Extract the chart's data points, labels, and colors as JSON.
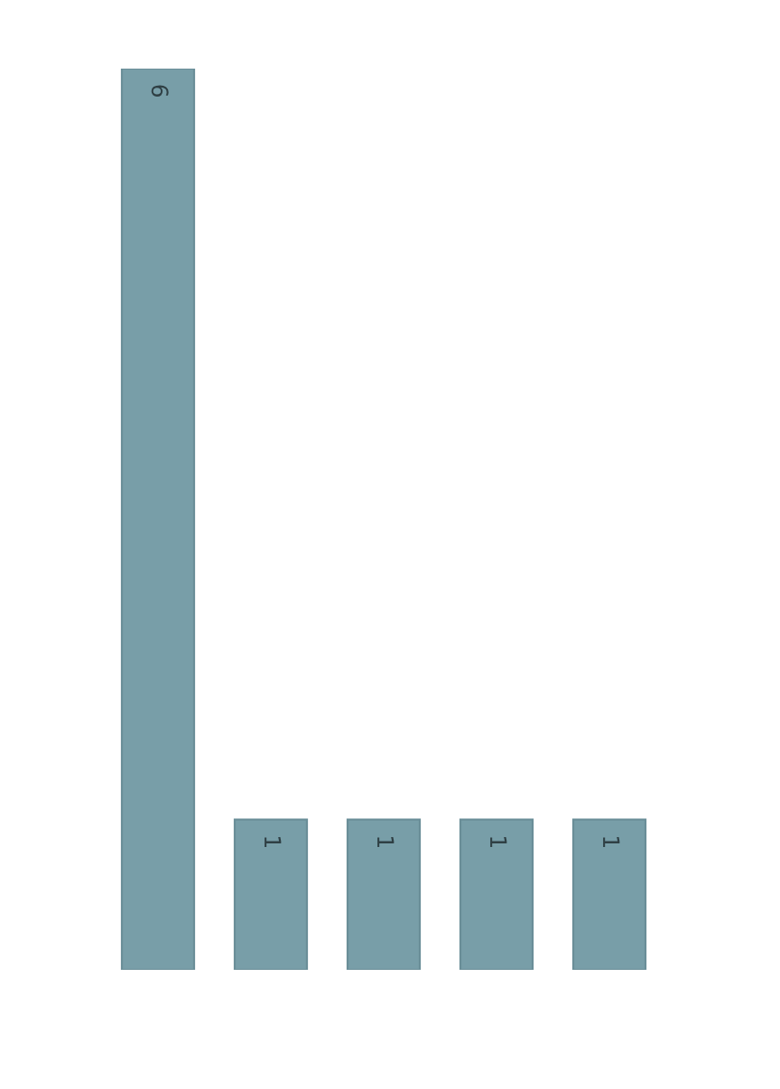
{
  "chart_data": {
    "type": "bar",
    "categories": [
      null,
      null,
      null,
      null,
      null
    ],
    "values": [
      6,
      1,
      1,
      1,
      1
    ],
    "color": "#789ea8",
    "ylim": [
      0,
      6
    ],
    "data_labels": true
  }
}
